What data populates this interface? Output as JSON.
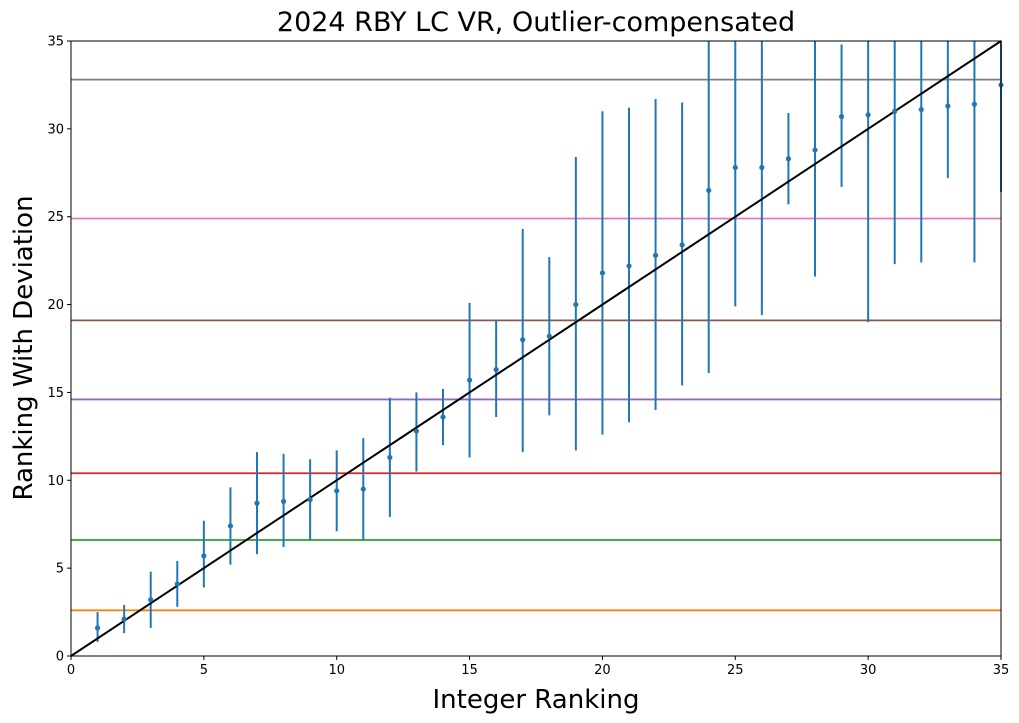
{
  "chart_data": {
    "type": "scatter",
    "title": "2024 RBY LC VR, Outlier-compensated",
    "xlabel": "Integer Ranking",
    "ylabel": "Ranking With Deviation",
    "xlim": [
      0,
      35
    ],
    "ylim": [
      0,
      35
    ],
    "xticks": [
      0,
      5,
      10,
      15,
      20,
      25,
      30,
      35
    ],
    "yticks": [
      0,
      5,
      10,
      15,
      20,
      25,
      30,
      35
    ],
    "grid": false,
    "points": {
      "color": "#1f77b4",
      "x": [
        1,
        2,
        3,
        4,
        5,
        6,
        7,
        8,
        9,
        10,
        11,
        12,
        13,
        14,
        15,
        16,
        17,
        18,
        19,
        20,
        21,
        22,
        23,
        24,
        25,
        26,
        27,
        28,
        29,
        30,
        31,
        32,
        33,
        34,
        35
      ],
      "y": [
        1.6,
        2.1,
        3.2,
        4.1,
        5.7,
        7.4,
        8.7,
        8.8,
        8.9,
        9.4,
        9.5,
        11.3,
        12.8,
        13.6,
        15.7,
        16.3,
        18.0,
        18.2,
        20.0,
        21.8,
        22.2,
        22.8,
        23.4,
        26.5,
        27.8,
        27.8,
        28.3,
        28.8,
        30.7,
        30.8,
        31.0,
        31.1,
        31.3,
        31.4,
        32.5
      ],
      "err_low": [
        0.8,
        1.3,
        1.6,
        2.8,
        3.9,
        5.2,
        5.8,
        6.2,
        6.6,
        7.1,
        6.6,
        7.9,
        10.5,
        12.0,
        11.3,
        13.6,
        11.6,
        13.7,
        11.7,
        12.6,
        13.3,
        14.0,
        15.4,
        16.1,
        19.9,
        19.4,
        25.7,
        21.6,
        26.7,
        19.0,
        22.3,
        22.4,
        27.2,
        22.4,
        26.4
      ],
      "err_high": [
        2.5,
        2.9,
        4.8,
        5.4,
        7.7,
        9.6,
        11.6,
        11.5,
        11.2,
        11.7,
        12.4,
        14.7,
        15.0,
        15.2,
        20.1,
        19.1,
        24.3,
        22.7,
        28.4,
        31.0,
        31.2,
        31.7,
        31.5,
        35.0,
        35.0,
        35.0,
        30.9,
        35.0,
        34.8,
        35.0,
        35.0,
        35.0,
        35.0,
        35.0,
        35.0
      ]
    },
    "reference_line": {
      "type": "identity",
      "color": "#000000",
      "from": [
        0,
        0
      ],
      "to": [
        35,
        35
      ]
    },
    "hlines": [
      {
        "y": 2.6,
        "color": "#ff7f0e"
      },
      {
        "y": 6.6,
        "color": "#2ca02c"
      },
      {
        "y": 10.4,
        "color": "#d62728"
      },
      {
        "y": 14.6,
        "color": "#9467bd"
      },
      {
        "y": 19.1,
        "color": "#8c564b"
      },
      {
        "y": 24.9,
        "color": "#e377c2"
      },
      {
        "y": 32.8,
        "color": "#7f7f7f"
      }
    ]
  }
}
